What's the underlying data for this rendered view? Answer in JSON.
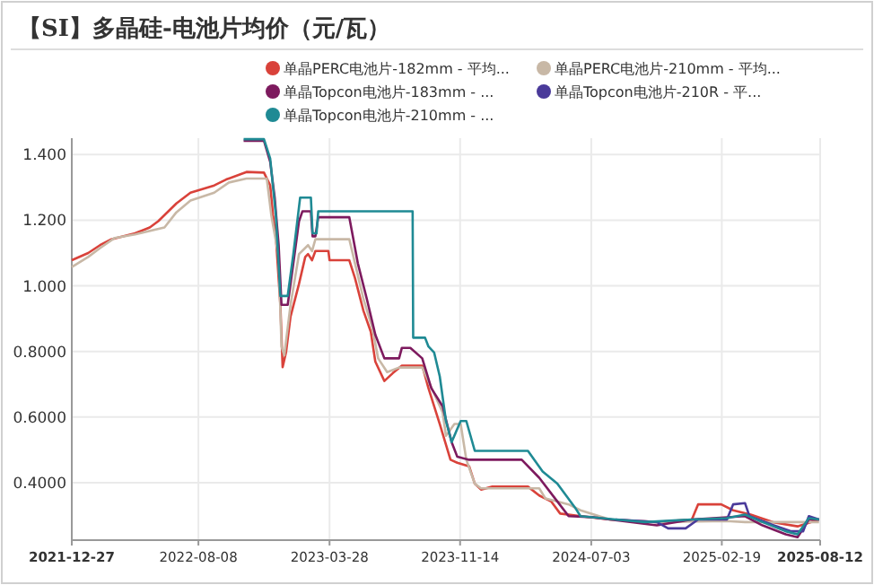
{
  "chart_data": {
    "type": "line",
    "title": "【SI】多晶硅-电池片均价（元/瓦）",
    "legend": "top",
    "grid": true,
    "marker": "none",
    "line_style": "solid",
    "xlim": [
      "2021-12-27",
      "2025-08-12"
    ],
    "xticks": [
      "2021-12-27",
      "2022-08-08",
      "2023-03-28",
      "2023-11-14",
      "2024-07-03",
      "2025-02-19",
      "2025-08-12"
    ],
    "ylim": [
      0.225,
      1.45
    ],
    "yticks": [
      {
        "value": 0.4,
        "label": "0.4000"
      },
      {
        "value": 0.6,
        "label": "0.6000"
      },
      {
        "value": 0.8,
        "label": "0.8000"
      },
      {
        "value": 1.0,
        "label": "1.000"
      },
      {
        "value": 1.2,
        "label": "1.200"
      },
      {
        "value": 1.4,
        "label": "1.400"
      }
    ],
    "series": [
      {
        "name": "单晶PERC电池片-182mm - 平均...",
        "color": "#d9423a",
        "x": [
          "2021-12-27",
          "2022-01-25",
          "2022-02-15",
          "2022-03-07",
          "2022-04-18",
          "2022-05-14",
          "2022-05-29",
          "2022-06-30",
          "2022-07-25",
          "2022-09-05",
          "2022-09-26",
          "2022-11-01",
          "2022-12-02",
          "2022-12-13",
          "2022-12-18",
          "2022-12-23",
          "2022-12-31",
          "2023-01-04",
          "2023-01-10",
          "2023-01-18",
          "2023-02-02",
          "2023-02-13",
          "2023-02-18",
          "2023-02-25",
          "2023-03-03",
          "2023-03-26",
          "2023-03-28",
          "2023-05-02",
          "2023-05-12",
          "2023-05-27",
          "2023-06-09",
          "2023-06-17",
          "2023-07-03",
          "2023-07-18",
          "2023-08-03",
          "2023-09-08",
          "2023-09-19",
          "2023-10-09",
          "2023-10-28",
          "2023-11-09",
          "2023-11-30",
          "2023-12-10",
          "2023-12-21",
          "2024-01-10",
          "2024-03-13",
          "2024-04-02",
          "2024-04-23",
          "2024-05-09",
          "2024-06-14",
          "2024-08-05",
          "2024-10-27",
          "2024-12-28",
          "2025-01-08",
          "2025-02-18",
          "2025-03-11",
          "2025-04-11",
          "2025-05-22",
          "2025-07-03",
          "2025-08-10"
        ],
        "values": [
          1.078,
          1.1,
          1.124,
          1.142,
          1.16,
          1.178,
          1.197,
          1.251,
          1.284,
          1.306,
          1.324,
          1.347,
          1.345,
          1.306,
          1.215,
          1.151,
          0.942,
          0.752,
          0.797,
          0.906,
          1.006,
          1.088,
          1.097,
          1.078,
          1.106,
          1.106,
          1.078,
          1.078,
          1.024,
          0.924,
          0.86,
          0.769,
          0.71,
          0.734,
          0.757,
          0.757,
          0.688,
          0.579,
          0.47,
          0.461,
          0.45,
          0.397,
          0.379,
          0.388,
          0.388,
          0.361,
          0.343,
          0.306,
          0.298,
          0.288,
          0.28,
          0.288,
          0.334,
          0.334,
          0.316,
          0.303,
          0.279,
          0.267,
          0.288
        ]
      },
      {
        "name": "单晶PERC电池片-210mm - 平均...",
        "color": "#c8b8a6",
        "x": [
          "2021-12-27",
          "2022-01-25",
          "2022-02-15",
          "2022-03-13",
          "2022-04-18",
          "2022-06-09",
          "2022-06-30",
          "2022-07-25",
          "2022-09-05",
          "2022-10-01",
          "2022-11-01",
          "2022-12-07",
          "2022-12-15",
          "2022-12-28",
          "2023-01-02",
          "2023-01-07",
          "2023-01-18",
          "2023-02-02",
          "2023-02-18",
          "2023-02-25",
          "2023-03-03",
          "2023-05-02",
          "2023-05-12",
          "2023-05-27",
          "2023-06-12",
          "2023-06-22",
          "2023-07-08",
          "2023-07-29",
          "2023-09-08",
          "2023-09-20",
          "2023-10-14",
          "2023-10-20",
          "2023-11-04",
          "2023-11-15",
          "2023-11-25",
          "2023-12-10",
          "2023-12-21",
          "2024-04-02",
          "2024-04-13",
          "2024-05-24",
          "2024-06-14",
          "2024-08-05",
          "2024-10-27",
          "2025-02-28",
          "2025-04-01",
          "2025-08-10"
        ],
        "values": [
          1.057,
          1.088,
          1.115,
          1.146,
          1.157,
          1.178,
          1.224,
          1.26,
          1.284,
          1.315,
          1.327,
          1.327,
          1.215,
          1.088,
          0.815,
          0.788,
          0.942,
          1.097,
          1.124,
          1.106,
          1.142,
          1.142,
          1.069,
          0.96,
          0.87,
          0.779,
          0.737,
          0.751,
          0.751,
          0.706,
          0.615,
          0.543,
          0.579,
          0.579,
          0.47,
          0.397,
          0.383,
          0.383,
          0.352,
          0.334,
          0.316,
          0.288,
          0.28,
          0.283,
          0.28,
          0.28
        ]
      },
      {
        "name": "单晶Topcon电池片-183mm - ...",
        "color": "#7d1a5e",
        "x": [
          "2022-10-27",
          "2022-12-02",
          "2022-12-13",
          "2022-12-21",
          "2022-12-28",
          "2023-01-02",
          "2023-01-13",
          "2023-01-23",
          "2023-02-02",
          "2023-02-08",
          "2023-02-23",
          "2023-02-26",
          "2023-03-03",
          "2023-03-08",
          "2023-05-02",
          "2023-05-17",
          "2023-06-02",
          "2023-06-17",
          "2023-07-03",
          "2023-07-29",
          "2023-08-03",
          "2023-08-18",
          "2023-09-08",
          "2023-09-24",
          "2023-10-14",
          "2023-10-30",
          "2023-11-09",
          "2023-11-30",
          "2024-03-02",
          "2024-04-02",
          "2024-05-04",
          "2024-05-24",
          "2024-07-05",
          "2024-08-15",
          "2024-10-27",
          "2024-12-28",
          "2025-04-01",
          "2025-05-02",
          "2025-06-12",
          "2025-07-03",
          "2025-07-23",
          "2025-08-10"
        ],
        "values": [
          1.442,
          1.442,
          1.378,
          1.269,
          1.124,
          0.942,
          0.942,
          1.069,
          1.197,
          1.227,
          1.227,
          1.151,
          1.151,
          1.209,
          1.209,
          1.069,
          0.96,
          0.851,
          0.779,
          0.779,
          0.811,
          0.811,
          0.779,
          0.688,
          0.633,
          0.524,
          0.479,
          0.47,
          0.47,
          0.415,
          0.343,
          0.298,
          0.295,
          0.286,
          0.27,
          0.288,
          0.298,
          0.27,
          0.243,
          0.234,
          0.288,
          0.288
        ]
      },
      {
        "name": "单晶Topcon电池片-210R - 平...",
        "color": "#4a3a9a",
        "x": [
          "2024-08-15",
          "2024-10-27",
          "2024-11-16",
          "2024-12-17",
          "2025-01-08",
          "2025-02-28",
          "2025-03-11",
          "2025-04-01",
          "2025-04-09",
          "2025-05-22",
          "2025-06-22",
          "2025-07-13",
          "2025-07-23",
          "2025-08-10"
        ],
        "values": [
          0.288,
          0.28,
          0.261,
          0.261,
          0.288,
          0.288,
          0.334,
          0.338,
          0.298,
          0.27,
          0.252,
          0.252,
          0.298,
          0.288
        ]
      },
      {
        "name": "单晶Topcon电池片-210mm - ...",
        "color": "#1f8a94",
        "x": [
          "2022-10-27",
          "2022-12-02",
          "2022-12-13",
          "2022-12-23",
          "2022-12-31",
          "2023-01-13",
          "2023-01-23",
          "2023-02-04",
          "2023-02-23",
          "2023-02-26",
          "2023-03-05",
          "2023-03-08",
          "2023-08-22",
          "2023-08-23",
          "2023-09-13",
          "2023-09-19",
          "2023-09-29",
          "2023-10-09",
          "2023-10-20",
          "2023-10-30",
          "2023-11-15",
          "2023-11-25",
          "2023-12-10",
          "2024-03-13",
          "2024-04-08",
          "2024-05-04",
          "2024-06-04",
          "2024-06-14",
          "2024-08-15",
          "2024-10-06",
          "2024-12-28",
          "2025-02-28",
          "2025-04-01",
          "2025-05-02",
          "2025-06-12",
          "2025-07-03",
          "2025-07-23",
          "2025-08-10"
        ],
        "values": [
          1.447,
          1.447,
          1.388,
          1.215,
          0.969,
          0.969,
          1.097,
          1.269,
          1.269,
          1.16,
          1.16,
          1.227,
          1.227,
          0.842,
          0.842,
          0.815,
          0.797,
          0.724,
          0.588,
          0.524,
          0.588,
          0.588,
          0.497,
          0.497,
          0.434,
          0.397,
          0.325,
          0.298,
          0.288,
          0.28,
          0.288,
          0.292,
          0.303,
          0.28,
          0.252,
          0.243,
          0.292,
          0.288
        ]
      }
    ]
  }
}
